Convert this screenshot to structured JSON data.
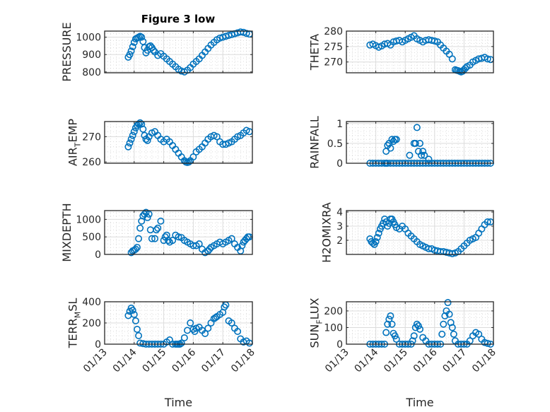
{
  "figure": {
    "title": "Figure 3 low",
    "marker_color": "#0072BD",
    "axis_color": "#262626",
    "grid_color": "#dcdcdc"
  },
  "chart_data": [
    {
      "type": "scatter",
      "id": "pressure",
      "title": "Figure 3 low",
      "xlabel": "",
      "ylabel": "PRESSURE",
      "ylabel_sub": null,
      "xlim": [
        0,
        5
      ],
      "ylim": [
        795,
        1035
      ],
      "yticks": [
        800,
        900,
        1000
      ],
      "xtick_labels": [],
      "grid": true,
      "x": [
        0.8,
        0.85,
        0.9,
        0.95,
        1.0,
        1.05,
        1.1,
        1.15,
        1.2,
        1.25,
        1.3,
        1.35,
        1.4,
        1.45,
        1.5,
        1.55,
        1.6,
        1.65,
        1.7,
        1.8,
        1.9,
        2.0,
        2.1,
        2.2,
        2.3,
        2.4,
        2.5,
        2.6,
        2.7,
        2.8,
        2.9,
        3.0,
        3.1,
        3.2,
        3.3,
        3.4,
        3.5,
        3.6,
        3.7,
        3.8,
        3.9,
        4.0,
        4.1,
        4.2,
        4.3,
        4.4,
        4.5,
        4.6,
        4.7,
        4.8,
        4.9
      ],
      "y": [
        885,
        900,
        920,
        945,
        970,
        990,
        995,
        1000,
        1005,
        1000,
        975,
        940,
        910,
        925,
        945,
        950,
        940,
        925,
        915,
        895,
        905,
        890,
        875,
        860,
        845,
        830,
        815,
        805,
        800,
        810,
        825,
        845,
        860,
        875,
        895,
        915,
        935,
        955,
        970,
        985,
        995,
        1000,
        1005,
        1010,
        1015,
        1020,
        1025,
        1030,
        1028,
        1022,
        1018
      ]
    },
    {
      "type": "scatter",
      "id": "theta",
      "xlabel": "",
      "ylabel": "THETA",
      "ylabel_sub": null,
      "xlim": [
        0,
        5
      ],
      "ylim": [
        266.5,
        280
      ],
      "yticks": [
        270,
        275,
        280
      ],
      "xtick_labels": [],
      "grid": true,
      "x": [
        0.8,
        0.9,
        1.0,
        1.1,
        1.2,
        1.3,
        1.4,
        1.5,
        1.6,
        1.7,
        1.8,
        1.9,
        2.0,
        2.1,
        2.2,
        2.3,
        2.4,
        2.5,
        2.6,
        2.7,
        2.8,
        2.9,
        3.0,
        3.1,
        3.2,
        3.3,
        3.4,
        3.5,
        3.6,
        3.7,
        3.75,
        3.8,
        3.85,
        3.9,
        3.95,
        4.0,
        4.05,
        4.1,
        4.2,
        4.3,
        4.4,
        4.5,
        4.6,
        4.7,
        4.8,
        4.9
      ],
      "y": [
        275.5,
        275.8,
        275.3,
        274.8,
        275.2,
        275.8,
        276.0,
        275.5,
        276.5,
        276.8,
        277.0,
        276.5,
        277.0,
        277.5,
        278.0,
        278.5,
        277.5,
        277.0,
        276.5,
        277.0,
        277.2,
        277.0,
        276.8,
        276.5,
        275.5,
        274.5,
        273.5,
        272.5,
        271.0,
        267.5,
        267.3,
        267.2,
        267.0,
        266.8,
        267.0,
        267.5,
        268.0,
        268.5,
        269.0,
        270.0,
        270.5,
        271.0,
        271.2,
        271.5,
        271.0,
        270.8
      ]
    },
    {
      "type": "scatter",
      "id": "air_temp",
      "xlabel": "",
      "ylabel": "AIR",
      "ylabel_sub": "T",
      "ylabel_suffix": "EMP",
      "xlim": [
        0,
        5
      ],
      "ylim": [
        259.5,
        276
      ],
      "yticks": [
        260,
        270
      ],
      "xtick_labels": [],
      "grid": true,
      "x": [
        0.8,
        0.85,
        0.9,
        0.95,
        1.0,
        1.05,
        1.1,
        1.15,
        1.2,
        1.25,
        1.3,
        1.35,
        1.4,
        1.45,
        1.5,
        1.6,
        1.7,
        1.8,
        1.9,
        2.0,
        2.1,
        2.2,
        2.3,
        2.4,
        2.5,
        2.6,
        2.7,
        2.75,
        2.8,
        2.85,
        2.9,
        3.0,
        3.1,
        3.2,
        3.3,
        3.4,
        3.5,
        3.6,
        3.7,
        3.8,
        3.9,
        4.0,
        4.1,
        4.2,
        4.3,
        4.4,
        4.5,
        4.6,
        4.7,
        4.8,
        4.9
      ],
      "y": [
        266,
        267.5,
        269,
        270.5,
        272,
        273.5,
        274.5,
        275,
        275.5,
        275,
        273,
        270.5,
        269,
        268.5,
        270,
        271.5,
        272,
        270.5,
        269,
        268,
        269,
        268,
        266.5,
        265,
        263.5,
        262,
        260.5,
        260,
        259.8,
        260,
        260.5,
        262,
        264,
        265,
        266,
        267.5,
        269,
        270,
        270.5,
        270,
        268,
        267,
        267,
        267.5,
        268,
        269,
        270,
        270.5,
        271.5,
        272.5,
        272
      ]
    },
    {
      "type": "scatter",
      "id": "rainfall",
      "xlabel": "",
      "ylabel": "RAINFALL",
      "ylabel_sub": null,
      "xlim": [
        0,
        5
      ],
      "ylim": [
        0,
        1.05
      ],
      "yticks": [
        0,
        0.5,
        1
      ],
      "xtick_labels": [],
      "grid": true,
      "x": [
        0.8,
        0.9,
        1.0,
        1.1,
        1.2,
        1.3,
        1.35,
        1.4,
        1.5,
        1.6,
        1.7,
        1.8,
        1.9,
        2.0,
        2.1,
        2.2,
        2.3,
        2.4,
        2.5,
        2.6,
        2.7,
        2.8,
        2.9,
        3.0,
        3.1,
        3.2,
        3.3,
        3.4,
        3.5,
        3.6,
        3.7,
        3.8,
        3.9,
        4.0,
        4.1,
        4.2,
        4.3,
        4.4,
        4.5,
        4.6,
        4.7,
        4.8,
        4.9,
        1.35,
        1.4,
        1.45,
        1.5,
        1.55,
        1.6,
        1.65,
        1.7,
        2.15,
        2.3,
        2.35,
        2.4,
        2.45,
        2.5,
        2.55,
        2.6,
        2.65,
        2.8
      ],
      "y": [
        0,
        0,
        0,
        0,
        0,
        0,
        0,
        0,
        0,
        0,
        0,
        0,
        0,
        0,
        0,
        0,
        0,
        0,
        0,
        0,
        0,
        0,
        0,
        0,
        0,
        0,
        0,
        0,
        0,
        0,
        0,
        0,
        0,
        0,
        0,
        0,
        0,
        0,
        0,
        0,
        0,
        0,
        0,
        0.3,
        0.45,
        0.5,
        0.38,
        0.6,
        0.55,
        0.6,
        0.6,
        0.2,
        0.5,
        0.5,
        0.9,
        0.3,
        0.5,
        0.2,
        0.3,
        0.2,
        0.1
      ]
    },
    {
      "type": "scatter",
      "id": "mixdepth",
      "xlabel": "",
      "ylabel": "MIXDEPTH",
      "ylabel_sub": null,
      "xlim": [
        0,
        5
      ],
      "ylim": [
        0,
        1250
      ],
      "yticks": [
        0,
        500,
        1000
      ],
      "xtick_labels": [],
      "grid": true,
      "x": [
        0.9,
        0.95,
        1.0,
        1.05,
        1.1,
        1.15,
        1.2,
        1.25,
        1.3,
        1.35,
        1.4,
        1.45,
        1.5,
        1.55,
        1.6,
        1.7,
        1.75,
        1.8,
        1.9,
        2.0,
        2.05,
        2.1,
        2.15,
        2.2,
        2.3,
        2.4,
        2.5,
        2.6,
        2.7,
        2.8,
        2.9,
        3.0,
        3.1,
        3.2,
        3.3,
        3.4,
        3.5,
        3.55,
        3.6,
        3.7,
        3.8,
        3.9,
        4.0,
        4.1,
        4.2,
        4.3,
        4.4,
        4.5,
        4.6,
        4.65,
        4.7,
        4.75,
        4.8,
        4.85,
        4.9
      ],
      "y": [
        50,
        100,
        120,
        150,
        200,
        450,
        750,
        950,
        1100,
        1150,
        1200,
        1050,
        1150,
        700,
        450,
        450,
        700,
        750,
        950,
        400,
        500,
        550,
        400,
        350,
        400,
        550,
        500,
        480,
        400,
        350,
        300,
        250,
        250,
        300,
        150,
        50,
        100,
        150,
        200,
        250,
        300,
        350,
        300,
        350,
        400,
        450,
        300,
        200,
        100,
        250,
        350,
        400,
        450,
        500,
        500
      ]
    },
    {
      "type": "scatter",
      "id": "h2omixra",
      "xlabel": "",
      "ylabel": "H2OMIXRA",
      "ylabel_sub": null,
      "xlim": [
        0,
        5
      ],
      "ylim": [
        1.0,
        4.1
      ],
      "yticks": [
        2,
        3,
        4
      ],
      "xtick_labels": [],
      "grid": true,
      "x": [
        0.8,
        0.85,
        0.9,
        0.95,
        1.0,
        1.05,
        1.1,
        1.15,
        1.2,
        1.25,
        1.3,
        1.35,
        1.4,
        1.45,
        1.5,
        1.55,
        1.6,
        1.65,
        1.7,
        1.8,
        1.9,
        2.0,
        2.1,
        2.2,
        2.3,
        2.4,
        2.5,
        2.6,
        2.7,
        2.8,
        2.9,
        3.0,
        3.1,
        3.2,
        3.3,
        3.4,
        3.5,
        3.6,
        3.7,
        3.8,
        3.9,
        4.0,
        4.1,
        4.2,
        4.3,
        4.4,
        4.5,
        4.6,
        4.7,
        4.8,
        4.9
      ],
      "y": [
        2.1,
        1.9,
        1.8,
        1.7,
        1.9,
        2.2,
        2.5,
        2.8,
        3.0,
        3.2,
        3.5,
        3.3,
        3.0,
        3.2,
        3.5,
        3.5,
        3.3,
        3.1,
        2.9,
        2.8,
        3.0,
        2.8,
        2.5,
        2.3,
        2.1,
        1.9,
        1.7,
        1.6,
        1.5,
        1.4,
        1.4,
        1.3,
        1.25,
        1.2,
        1.2,
        1.15,
        1.1,
        1.05,
        1.1,
        1.2,
        1.4,
        1.6,
        1.8,
        2.0,
        2.1,
        2.2,
        2.5,
        2.8,
        3.1,
        3.3,
        3.3
      ]
    },
    {
      "type": "scatter",
      "id": "terr_msl",
      "xlabel": "Time",
      "ylabel": "TERR",
      "ylabel_sub": "M",
      "ylabel_suffix": "SL",
      "xlim": [
        0,
        5
      ],
      "ylim": [
        0,
        400
      ],
      "yticks": [
        0,
        200,
        400
      ],
      "xtick_labels": [
        "01/13",
        "01/14",
        "01/15",
        "01/16",
        "01/17",
        "01/18"
      ],
      "grid": true,
      "x": [
        0.8,
        0.85,
        0.9,
        0.95,
        1.0,
        1.05,
        1.1,
        1.15,
        1.2,
        1.3,
        1.4,
        1.5,
        1.6,
        1.7,
        1.8,
        1.9,
        2.0,
        2.1,
        2.2,
        2.3,
        2.4,
        2.45,
        2.5,
        2.55,
        2.6,
        2.7,
        2.8,
        2.9,
        3.0,
        3.05,
        3.1,
        3.2,
        3.3,
        3.4,
        3.5,
        3.6,
        3.7,
        3.75,
        3.8,
        3.9,
        4.0,
        4.05,
        4.1,
        4.2,
        4.3,
        4.4,
        4.5,
        4.6,
        4.7,
        4.8,
        4.9
      ],
      "y": [
        270,
        310,
        340,
        320,
        280,
        220,
        140,
        80,
        10,
        5,
        0,
        0,
        0,
        0,
        0,
        0,
        0,
        20,
        40,
        0,
        0,
        0,
        0,
        0,
        10,
        60,
        130,
        200,
        140,
        120,
        150,
        160,
        130,
        100,
        150,
        200,
        240,
        250,
        260,
        280,
        300,
        350,
        370,
        220,
        200,
        150,
        120,
        50,
        20,
        30,
        10
      ]
    },
    {
      "type": "scatter",
      "id": "sun_flux",
      "xlabel": "Time",
      "ylabel": "SUN",
      "ylabel_sub": "F",
      "ylabel_suffix": "LUX",
      "xlim": [
        0,
        5
      ],
      "ylim": [
        0,
        255
      ],
      "yticks": [
        0,
        100,
        200
      ],
      "xtick_labels": [
        "01/13",
        "01/14",
        "01/15",
        "01/16",
        "01/17",
        "01/18"
      ],
      "grid": true,
      "x": [
        0.8,
        0.9,
        1.0,
        1.1,
        1.2,
        1.3,
        1.35,
        1.4,
        1.45,
        1.5,
        1.55,
        1.6,
        1.65,
        1.7,
        1.8,
        1.9,
        2.0,
        2.1,
        2.2,
        2.25,
        2.3,
        2.35,
        2.4,
        2.45,
        2.5,
        2.6,
        2.7,
        2.8,
        2.9,
        3.0,
        3.1,
        3.2,
        3.25,
        3.3,
        3.35,
        3.4,
        3.45,
        3.5,
        3.55,
        3.6,
        3.65,
        3.7,
        3.8,
        3.9,
        4.0,
        4.1,
        4.2,
        4.3,
        4.4,
        4.5,
        4.6,
        4.7,
        4.8,
        4.9
      ],
      "y": [
        0,
        0,
        0,
        0,
        0,
        0,
        70,
        120,
        150,
        170,
        120,
        65,
        50,
        30,
        0,
        0,
        0,
        0,
        0,
        20,
        50,
        100,
        120,
        110,
        90,
        40,
        20,
        0,
        0,
        0,
        0,
        0,
        60,
        120,
        170,
        200,
        250,
        180,
        130,
        100,
        60,
        20,
        0,
        0,
        0,
        0,
        20,
        50,
        70,
        60,
        30,
        10,
        5,
        0
      ]
    }
  ]
}
